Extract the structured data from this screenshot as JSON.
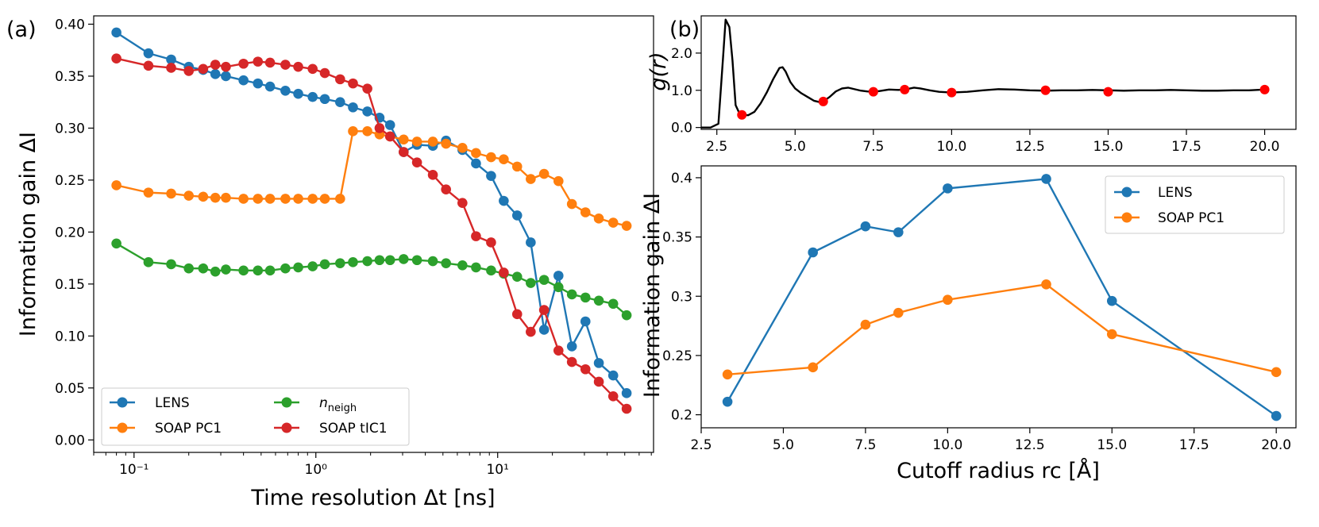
{
  "panel_labels": [
    "(a)",
    "(b)"
  ],
  "chart_data": [
    {
      "id": "a",
      "type": "line",
      "xscale": "log",
      "xlim": [
        0.06,
        72
      ],
      "ylim": [
        -0.012,
        0.408
      ],
      "xlabel": "Time resolution Δt [ns]",
      "ylabel": "Information gain ΔI",
      "xticks": [
        0.1,
        1,
        10
      ],
      "xtick_labels": [
        "10⁻¹",
        "10⁰",
        "10¹"
      ],
      "yticks": [
        0.0,
        0.05,
        0.1,
        0.15,
        0.2,
        0.25,
        0.3,
        0.35,
        0.4
      ],
      "ytick_labels": [
        "0.00",
        "0.05",
        "0.10",
        "0.15",
        "0.20",
        "0.25",
        "0.30",
        "0.35",
        "0.40"
      ],
      "legend_loc": "lower-left",
      "x": [
        0.08,
        0.12,
        0.16,
        0.2,
        0.24,
        0.28,
        0.32,
        0.4,
        0.48,
        0.56,
        0.68,
        0.8,
        0.96,
        1.12,
        1.36,
        1.6,
        1.92,
        2.24,
        2.56,
        3.04,
        3.6,
        4.4,
        5.2,
        6.4,
        7.6,
        9.2,
        10.8,
        12.8,
        15.2,
        18,
        21.6,
        25.6,
        30.4,
        36,
        43.2,
        51.2
      ],
      "series": [
        {
          "name": "LENS",
          "color": "#1f77b4",
          "values": [
            0.392,
            0.372,
            0.366,
            0.359,
            0.356,
            0.352,
            0.35,
            0.346,
            0.343,
            0.34,
            0.336,
            0.333,
            0.33,
            0.328,
            0.325,
            0.32,
            0.316,
            0.31,
            0.303,
            0.277,
            0.284,
            0.283,
            0.288,
            0.279,
            0.266,
            0.254,
            0.23,
            0.216,
            0.19,
            0.106,
            0.158,
            0.09,
            0.114,
            0.074,
            0.062,
            0.045
          ]
        },
        {
          "name": "SOAP PC1",
          "color": "#ff7f0e",
          "values": [
            0.245,
            0.238,
            0.237,
            0.235,
            0.234,
            0.233,
            0.233,
            0.232,
            0.232,
            0.232,
            0.232,
            0.232,
            0.232,
            0.232,
            0.232,
            0.297,
            0.297,
            0.294,
            0.292,
            0.289,
            0.287,
            0.287,
            0.285,
            0.281,
            0.276,
            0.272,
            0.27,
            0.263,
            0.251,
            0.256,
            0.249,
            0.227,
            0.219,
            0.213,
            0.209,
            0.206
          ]
        },
        {
          "name": "n_neigh",
          "color": "#2ca02c",
          "values": [
            0.189,
            0.171,
            0.169,
            0.165,
            0.165,
            0.162,
            0.164,
            0.163,
            0.163,
            0.163,
            0.165,
            0.166,
            0.167,
            0.169,
            0.17,
            0.171,
            0.172,
            0.173,
            0.173,
            0.174,
            0.173,
            0.172,
            0.17,
            0.168,
            0.166,
            0.163,
            0.16,
            0.157,
            0.151,
            0.154,
            0.147,
            0.14,
            0.137,
            0.134,
            0.131,
            0.12
          ]
        },
        {
          "name": "SOAP tIC1",
          "color": "#d62728",
          "values": [
            0.367,
            0.36,
            0.358,
            0.355,
            0.357,
            0.361,
            0.359,
            0.362,
            0.364,
            0.363,
            0.361,
            0.359,
            0.357,
            0.353,
            0.347,
            0.343,
            0.338,
            0.3,
            0.292,
            0.277,
            0.267,
            0.255,
            0.241,
            0.228,
            0.196,
            0.19,
            0.161,
            0.121,
            0.104,
            0.125,
            0.086,
            0.075,
            0.068,
            0.056,
            0.042,
            0.03
          ]
        }
      ]
    },
    {
      "id": "b-top",
      "type": "line",
      "xlim": [
        2.0,
        21.0
      ],
      "ylim": [
        -0.05,
        3.0
      ],
      "xlabel": "",
      "ylabel": "g(r)",
      "xticks": [
        2.5,
        5.0,
        7.5,
        10.0,
        12.5,
        15.0,
        17.5,
        20.0
      ],
      "xtick_labels": [
        "2.5",
        "5.0",
        "7.5",
        "10.0",
        "12.5",
        "15.0",
        "17.5",
        "20.0"
      ],
      "yticks": [
        0.0,
        1.0,
        2.0
      ],
      "ytick_labels": [
        "0.0",
        "1.0",
        "2.0"
      ],
      "curve": {
        "color": "#000000",
        "x": [
          2.0,
          2.3,
          2.55,
          2.7,
          2.78,
          2.9,
          3.0,
          3.1,
          3.2,
          3.3,
          3.5,
          3.7,
          3.9,
          4.1,
          4.3,
          4.5,
          4.6,
          4.7,
          4.85,
          5.0,
          5.2,
          5.4,
          5.6,
          5.8,
          5.9,
          6.1,
          6.3,
          6.5,
          6.7,
          6.9,
          7.1,
          7.3,
          7.5,
          7.7,
          8.0,
          8.3,
          8.5,
          8.8,
          9.0,
          9.3,
          9.6,
          10.0,
          10.5,
          11.0,
          11.5,
          12.0,
          12.5,
          13.0,
          13.5,
          14.0,
          14.5,
          15.0,
          15.5,
          16.0,
          16.5,
          17.0,
          17.5,
          18.0,
          18.5,
          19.0,
          19.5,
          20.0
        ],
        "y": [
          0.0,
          0.0,
          0.1,
          1.9,
          2.9,
          2.7,
          1.8,
          0.6,
          0.42,
          0.34,
          0.33,
          0.42,
          0.65,
          0.95,
          1.3,
          1.6,
          1.62,
          1.5,
          1.22,
          1.05,
          0.92,
          0.82,
          0.72,
          0.68,
          0.7,
          0.82,
          0.97,
          1.05,
          1.07,
          1.03,
          0.99,
          0.97,
          0.96,
          0.98,
          1.02,
          1.01,
          1.02,
          1.07,
          1.05,
          1.0,
          0.96,
          0.94,
          0.96,
          1.0,
          1.03,
          1.02,
          1.0,
          0.99,
          1.0,
          1.0,
          1.01,
          1.0,
          0.99,
          1.0,
          1.0,
          1.01,
          1.0,
          0.99,
          0.99,
          1.0,
          1.0,
          1.02
        ]
      },
      "points": {
        "color": "#ff0000",
        "x": [
          3.3,
          5.9,
          7.5,
          8.5,
          10.0,
          13.0,
          15.0,
          20.0
        ],
        "y": [
          0.34,
          0.7,
          0.96,
          1.02,
          0.94,
          1.0,
          0.96,
          1.02
        ]
      }
    },
    {
      "id": "b-bottom",
      "type": "line",
      "xlim": [
        2.5,
        20.6
      ],
      "ylim": [
        0.189,
        0.41
      ],
      "xlabel": "Cutoff radius rc [Å]",
      "ylabel": "Information gain ΔI",
      "xticks": [
        2.5,
        5.0,
        7.5,
        10.0,
        12.5,
        15.0,
        17.5,
        20.0
      ],
      "xtick_labels": [
        "2.5",
        "5.0",
        "7.5",
        "10.0",
        "12.5",
        "15.0",
        "17.5",
        "20.0"
      ],
      "yticks": [
        0.2,
        0.25,
        0.3,
        0.35,
        0.4
      ],
      "ytick_labels": [
        "0.2",
        "0.25",
        "0.3",
        "0.35",
        "0.4"
      ],
      "legend_loc": "top-right",
      "x": [
        3.3,
        5.9,
        7.5,
        8.5,
        10.0,
        13.0,
        15.0,
        20.0
      ],
      "series": [
        {
          "name": "LENS",
          "color": "#1f77b4",
          "values": [
            0.211,
            0.337,
            0.359,
            0.354,
            0.391,
            0.399,
            0.296,
            0.199
          ]
        },
        {
          "name": "SOAP PC1",
          "color": "#ff7f0e",
          "values": [
            0.234,
            0.24,
            0.276,
            0.286,
            0.297,
            0.31,
            0.268,
            0.236
          ]
        }
      ]
    }
  ]
}
